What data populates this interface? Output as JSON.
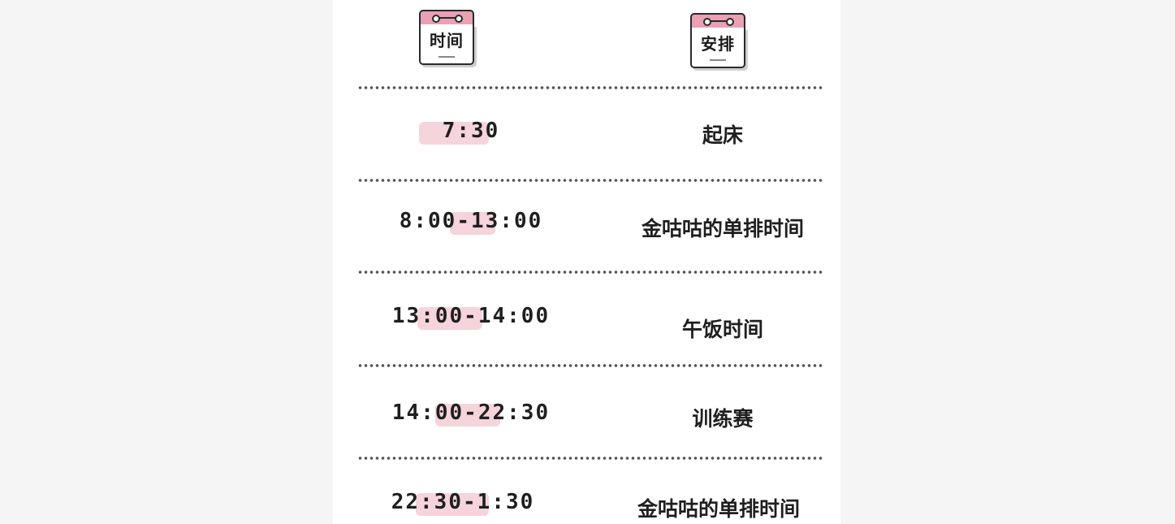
{
  "header": {
    "time_label": "时间",
    "plan_label": "安排"
  },
  "schedule": [
    {
      "time": "7:30",
      "activity": "起床"
    },
    {
      "time": "8:00-13:00",
      "activity": "金咕咕的单排时间"
    },
    {
      "time": "13:00-14:00",
      "activity": "午饭时间"
    },
    {
      "time": "14:00-22:30",
      "activity": "训练赛"
    },
    {
      "time": "22:30-1:30",
      "activity": "金咕咕的单排时间"
    }
  ],
  "colors": {
    "calendar_accent": "#e9a1b3",
    "highlight": "#eca0b2"
  }
}
